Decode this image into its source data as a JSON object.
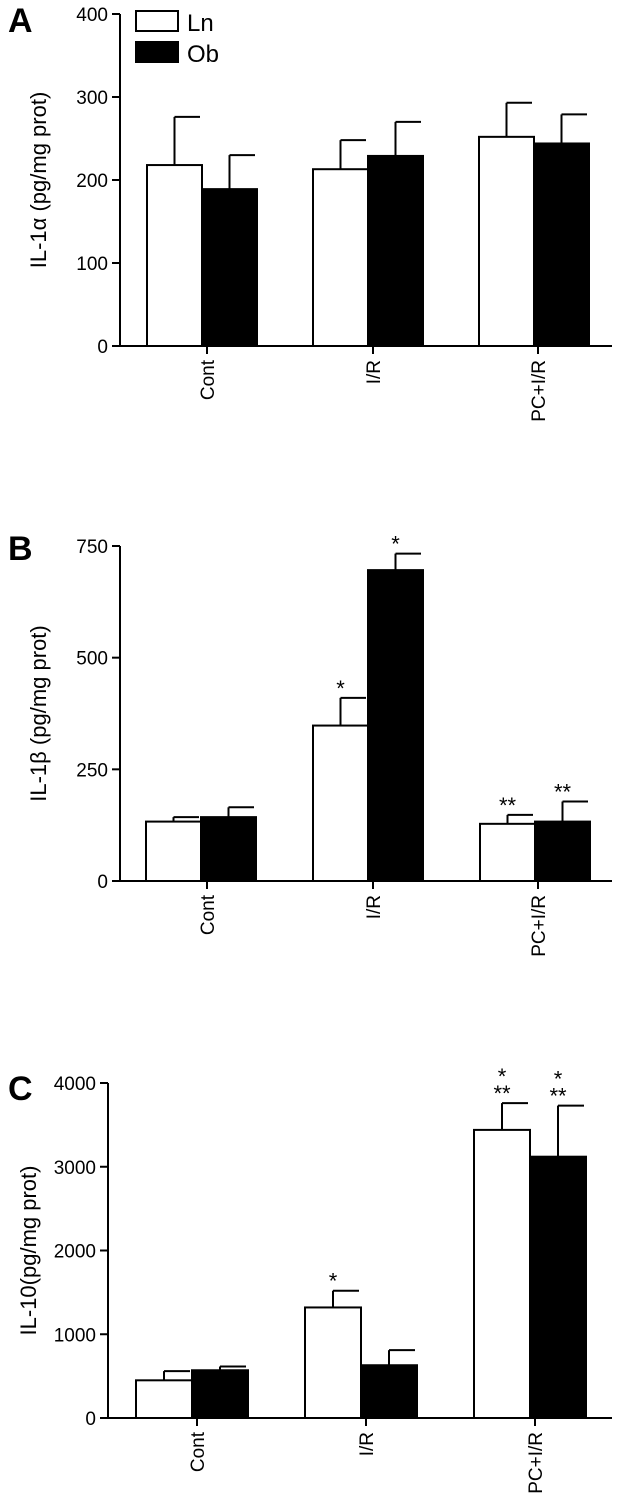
{
  "legend": [
    {
      "name": "Ln",
      "fill": "#ffffff"
    },
    {
      "name": "Ob",
      "fill": "#000000"
    }
  ],
  "chart_data": [
    {
      "panel": "A",
      "type": "bar",
      "ylabel": "IL-1α (pg/mg prot)",
      "categories": [
        "Cont",
        "I/R",
        "PC+I/R"
      ],
      "ylim": [
        0,
        400
      ],
      "yticks": [
        0,
        100,
        200,
        300,
        400
      ],
      "series": [
        {
          "name": "Ln",
          "fill": "#ffffff",
          "values": [
            218,
            213,
            252
          ],
          "errors": [
            58,
            35,
            41
          ],
          "annotations": [
            "",
            "",
            ""
          ]
        },
        {
          "name": "Ob",
          "fill": "#000000",
          "values": [
            189,
            229,
            244
          ],
          "errors": [
            41,
            41,
            35
          ],
          "annotations": [
            "",
            "",
            ""
          ]
        }
      ]
    },
    {
      "panel": "B",
      "type": "bar",
      "ylabel": "IL-1β (pg/mg prot)",
      "categories": [
        "Cont",
        "I/R",
        "PC+I/R"
      ],
      "ylim": [
        0,
        750
      ],
      "yticks": [
        0,
        250,
        500,
        750
      ],
      "series": [
        {
          "name": "Ln",
          "fill": "#ffffff",
          "values": [
            133,
            348,
            128
          ],
          "errors": [
            10,
            62,
            20
          ],
          "annotations": [
            "",
            "*",
            "**"
          ]
        },
        {
          "name": "Ob",
          "fill": "#000000",
          "values": [
            143,
            696,
            133
          ],
          "errors": [
            22,
            37,
            45
          ],
          "annotations": [
            "",
            "*",
            "**"
          ]
        }
      ]
    },
    {
      "panel": "C",
      "type": "bar",
      "ylabel": "IL-10(pg/mg prot)",
      "categories": [
        "Cont",
        "I/R",
        "PC+I/R"
      ],
      "ylim": [
        0,
        4000
      ],
      "yticks": [
        0,
        1000,
        2000,
        3000,
        4000
      ],
      "series": [
        {
          "name": "Ln",
          "fill": "#ffffff",
          "values": [
            450,
            1320,
            3440
          ],
          "errors": [
            110,
            200,
            320
          ],
          "annotations": [
            "",
            "*",
            "*\n**"
          ]
        },
        {
          "name": "Ob",
          "fill": "#000000",
          "values": [
            570,
            630,
            3120
          ],
          "errors": [
            45,
            180,
            610
          ],
          "annotations": [
            "",
            "",
            "*\n**"
          ]
        }
      ]
    }
  ]
}
